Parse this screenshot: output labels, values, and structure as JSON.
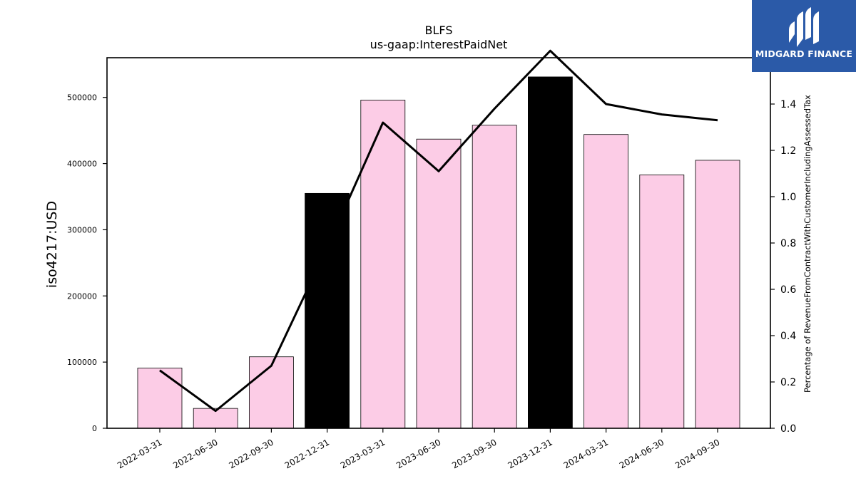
{
  "chart_data": {
    "type": "bar",
    "title": "BLFS",
    "subtitle": "us-gaap:InterestPaidNet",
    "ylabel": "iso4217:USD",
    "y2label": "Percentage of RevenueFromContractWithCustomerIncludingAssessedTax",
    "categories": [
      "2022-03-31",
      "2022-06-30",
      "2022-09-30",
      "2022-12-31",
      "2023-03-31",
      "2023-06-30",
      "2023-09-30",
      "2023-12-31",
      "2024-03-31",
      "2024-06-30",
      "2024-09-30"
    ],
    "values": [
      91000,
      30000,
      108000,
      355000,
      496000,
      437000,
      458000,
      531000,
      444000,
      383000,
      405000
    ],
    "highlighted": [
      false,
      false,
      false,
      true,
      false,
      false,
      false,
      true,
      false,
      false,
      false
    ],
    "line_values": [
      0.25,
      0.075,
      0.27,
      0.78,
      1.32,
      1.11,
      1.38,
      1.63,
      1.4,
      1.355,
      1.33
    ],
    "ylim": [
      0,
      560000
    ],
    "y2lim": [
      0,
      1.6
    ],
    "yticks": [
      0,
      100000,
      200000,
      300000,
      400000,
      500000
    ],
    "y2ticks": [
      "0.0",
      "0.2",
      "0.4",
      "0.6",
      "0.8",
      "1.0",
      "1.2",
      "1.4",
      "1.6"
    ],
    "colors": {
      "bar": "#fccce6",
      "bar_highlight": "#000000",
      "line": "#000000",
      "edge": "#000000"
    }
  },
  "logo": {
    "text": "MIDGARD FINANCE"
  }
}
